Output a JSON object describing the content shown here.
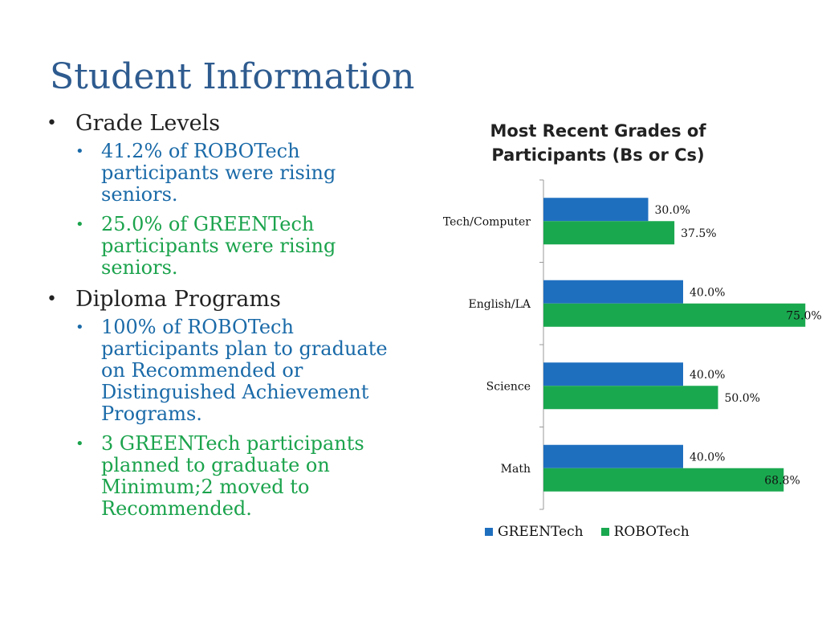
{
  "slide": {
    "title": "Student Information"
  },
  "bullets": [
    {
      "text": "Grade Levels",
      "sub": [
        {
          "text": "41.2% of ROBOTech participants were rising seniors.",
          "color": "#1a6aa8"
        },
        {
          "text": "25.0% of GREENTech participants were rising seniors.",
          "color": "#1ba34c"
        }
      ]
    },
    {
      "text": "Diploma Programs",
      "sub": [
        {
          "text": "100% of ROBOTech participants plan to graduate on Recommended or Distinguished Achievement Programs.",
          "color": "#1a6aa8"
        },
        {
          "text": "3 GREENTech participants planned to graduate on Minimum;2 moved to Recommended.",
          "color": "#1ba34c"
        }
      ]
    }
  ],
  "bullet_glyph": "•",
  "chart_data": {
    "type": "bar",
    "orientation": "horizontal",
    "title": "Most Recent Grades of Participants (Bs or Cs)",
    "categories": [
      "Tech/Computer",
      "English/LA",
      "Science",
      "Math"
    ],
    "series": [
      {
        "name": "GREENTech",
        "color": "#1f6fbf",
        "values": [
          30.0,
          40.0,
          40.0,
          40.0
        ],
        "labels": [
          "30.0%",
          "40.0%",
          "40.0%",
          "40.0%"
        ]
      },
      {
        "name": "ROBOTech",
        "color": "#1aa84f",
        "values": [
          37.5,
          75.0,
          50.0,
          68.8
        ],
        "labels": [
          "37.5%",
          "75.0%",
          "50.0%",
          "68.8%"
        ]
      }
    ],
    "xlim": [
      0,
      80
    ],
    "grid": false,
    "legend": "bottom"
  }
}
